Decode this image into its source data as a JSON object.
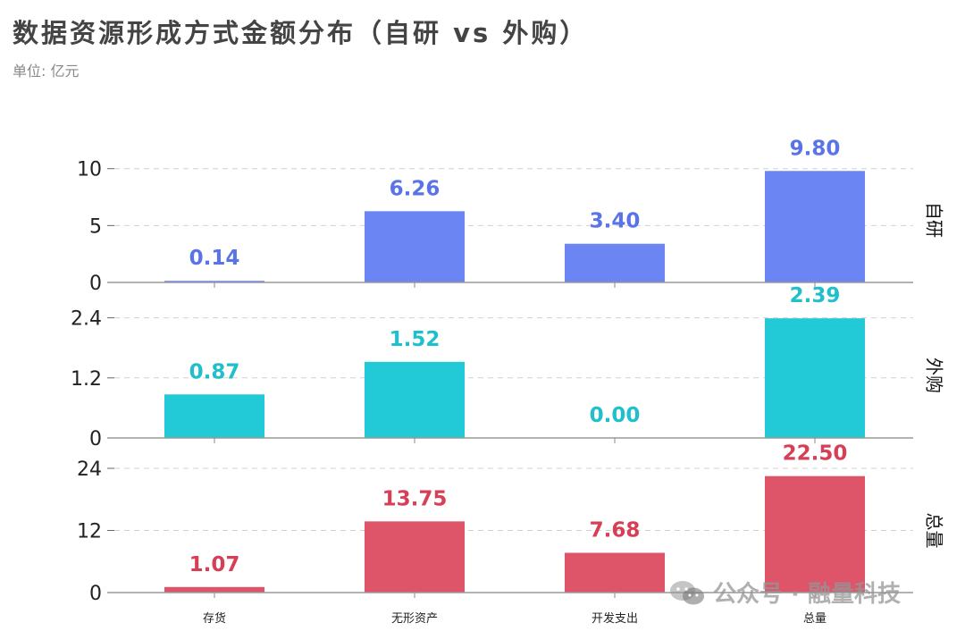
{
  "chart_data": {
    "type": "bar",
    "title": "数据资源形成方式金额分布（自研 vs 外购）",
    "subtitle": "单位: 亿元",
    "categories": [
      "存货",
      "无形资产",
      "开发支出",
      "总量"
    ],
    "panels": [
      {
        "name": "自研",
        "values": [
          0.14,
          6.26,
          3.4,
          9.8
        ],
        "labels": [
          "0.14",
          "6.26",
          "3.40",
          "9.80"
        ],
        "ylim": [
          0,
          11
        ],
        "ticks": [
          0,
          5,
          10
        ],
        "tick_labels": [
          "0",
          "5",
          "10"
        ],
        "color": "#6b86f2",
        "label_color": "#5a73e8"
      },
      {
        "name": "外购",
        "values": [
          0.87,
          1.52,
          0.0,
          2.39
        ],
        "labels": [
          "0.87",
          "1.52",
          "0.00",
          "2.39"
        ],
        "ylim": [
          0,
          2.5
        ],
        "ticks": [
          0,
          1.2,
          2.4
        ],
        "tick_labels": [
          "0",
          "1.2",
          "2.4"
        ],
        "color": "#22c9d6",
        "label_color": "#1fbfcc"
      },
      {
        "name": "总量",
        "values": [
          1.07,
          13.75,
          7.68,
          22.5
        ],
        "labels": [
          "1.07",
          "13.75",
          "7.68",
          "22.50"
        ],
        "ylim": [
          0,
          24
        ],
        "ticks": [
          0,
          12,
          24
        ],
        "tick_labels": [
          "0",
          "12",
          "24"
        ],
        "color": "#de5468",
        "label_color": "#d63f56"
      }
    ],
    "grid": true,
    "legend": "none"
  },
  "watermark": {
    "text": "公众号 · 融量科技",
    "icon": "wechat-icon"
  }
}
